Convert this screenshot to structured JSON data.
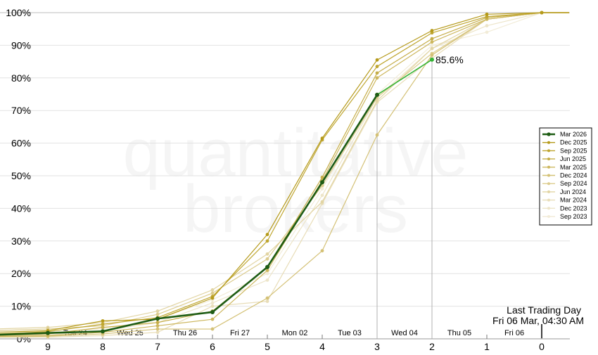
{
  "chart_data": {
    "type": "line",
    "watermark": [
      "quantitative",
      "brokers"
    ],
    "x_ticks": [
      9,
      8,
      7,
      6,
      5,
      4,
      3,
      2,
      1,
      0
    ],
    "ylim": [
      0,
      100
    ],
    "y_ticks": [
      "0%",
      "10%",
      "20%",
      "30%",
      "40%",
      "50%",
      "60%",
      "70%",
      "80%",
      "90%",
      "100%"
    ],
    "day_labels": [
      {
        "label": "Tue 24",
        "x": 8.5
      },
      {
        "label": "Wed 25",
        "x": 7.5
      },
      {
        "label": "Thu 26",
        "x": 6.5
      },
      {
        "label": "Fri 27",
        "x": 5.5
      },
      {
        "label": "Mon 02",
        "x": 4.5
      },
      {
        "label": "Tue 03",
        "x": 3.5
      },
      {
        "label": "Wed 04",
        "x": 2.5
      },
      {
        "label": "Thu 05",
        "x": 1.5
      },
      {
        "label": "Fri 06",
        "x": 0.5
      }
    ],
    "last_trading_day": {
      "line1": "Last Trading Day",
      "line2": "Fri 06 Mar, 04:30 AM"
    },
    "annotation": {
      "label": "85.6%",
      "x": 2,
      "y": 85.6
    },
    "vlines": [
      3,
      2
    ],
    "series": [
      {
        "name": "Mar 2026",
        "color": "#1e5c14",
        "main": true,
        "x": [
          10,
          9,
          8,
          7,
          6,
          5,
          4,
          3,
          2
        ],
        "y": [
          1.2,
          1.8,
          2.3,
          6.2,
          8.2,
          22.0,
          48.0,
          74.8,
          85.6
        ],
        "ext_color": "#36b436",
        "ext_from": 3
      },
      {
        "name": "Dec 2025",
        "color": "#b59a1a",
        "x": [
          10,
          9,
          8,
          7,
          6,
          5,
          4,
          3,
          2,
          1,
          0,
          -0.5
        ],
        "y": [
          2.0,
          2.5,
          5.5,
          6.0,
          12.5,
          32.0,
          61.5,
          85.5,
          94.5,
          99.5,
          100,
          100
        ]
      },
      {
        "name": "Sep 2025",
        "color": "#bfa630",
        "x": [
          10,
          9,
          8,
          7,
          6,
          5,
          4,
          3,
          2,
          1,
          0,
          -0.5
        ],
        "y": [
          1.5,
          2.2,
          4.5,
          6.5,
          13.0,
          30.0,
          61.0,
          83.5,
          93.8,
          98.8,
          100,
          100
        ]
      },
      {
        "name": "Jun 2025",
        "color": "#c5ad48",
        "x": [
          10,
          9,
          8,
          7,
          6,
          5,
          4,
          3,
          2,
          1,
          0,
          -0.5
        ],
        "y": [
          1.0,
          1.5,
          3.5,
          5.0,
          8.5,
          22.0,
          49.5,
          81.5,
          92.0,
          98.5,
          100,
          100
        ]
      },
      {
        "name": "Mar 2025",
        "color": "#cdb75e",
        "x": [
          10,
          9,
          8,
          7,
          6,
          5,
          4,
          3,
          2,
          1,
          0,
          -0.5
        ],
        "y": [
          0.8,
          1.0,
          2.0,
          4.0,
          6.0,
          21.0,
          48.5,
          80.0,
          91.0,
          98.0,
          100,
          100
        ]
      },
      {
        "name": "Dec 2024",
        "color": "#d4c176",
        "x": [
          10,
          9,
          8,
          7,
          6,
          5,
          4,
          3,
          2,
          1,
          0,
          -0.5
        ],
        "y": [
          0.6,
          0.8,
          1.5,
          3.0,
          3.0,
          12.5,
          27.0,
          62.5,
          87.0,
          98.0,
          100,
          100
        ]
      },
      {
        "name": "Sep 2024",
        "color": "#dccc8e",
        "x": [
          10,
          9,
          8,
          7,
          6,
          5,
          4,
          3,
          2,
          1,
          0,
          -0.5
        ],
        "y": [
          2.5,
          3.0,
          4.0,
          7.5,
          14.0,
          24.5,
          47.0,
          74.0,
          87.5,
          98.0,
          100,
          100
        ]
      },
      {
        "name": "Jun 2024",
        "color": "#e2d5a4",
        "x": [
          10,
          9,
          8,
          7,
          6,
          5,
          4,
          3,
          2,
          1,
          0,
          -0.5
        ],
        "y": [
          3.0,
          3.5,
          5.0,
          8.5,
          15.0,
          26.0,
          42.0,
          73.0,
          89.0,
          98.0,
          100,
          100
        ]
      },
      {
        "name": "Mar 2024",
        "color": "#e8ddb8",
        "x": [
          10,
          9,
          8,
          7,
          6,
          5,
          4,
          3,
          2,
          1,
          0,
          -0.5
        ],
        "y": [
          0.5,
          0.5,
          1.0,
          2.0,
          10.0,
          11.5,
          41.5,
          72.5,
          86.0,
          98.0,
          100,
          100
        ]
      },
      {
        "name": "Dec 2023",
        "color": "#ede5c9",
        "x": [
          10,
          9,
          8,
          7,
          6,
          5,
          4,
          3,
          2,
          1,
          0,
          -0.5
        ],
        "y": [
          1.0,
          1.2,
          2.5,
          5.0,
          11.0,
          18.0,
          44.0,
          74.0,
          89.0,
          96.0,
          100,
          100
        ]
      },
      {
        "name": "Sep 2023",
        "color": "#f2ecd8",
        "x": [
          10,
          9,
          8,
          7,
          6,
          5,
          4,
          3,
          2,
          1,
          0,
          -0.5
        ],
        "y": [
          1.5,
          2.0,
          3.0,
          6.0,
          12.0,
          20.0,
          46.0,
          75.0,
          90.0,
          94.0,
          100,
          100
        ]
      }
    ],
    "legend_position": "right"
  }
}
